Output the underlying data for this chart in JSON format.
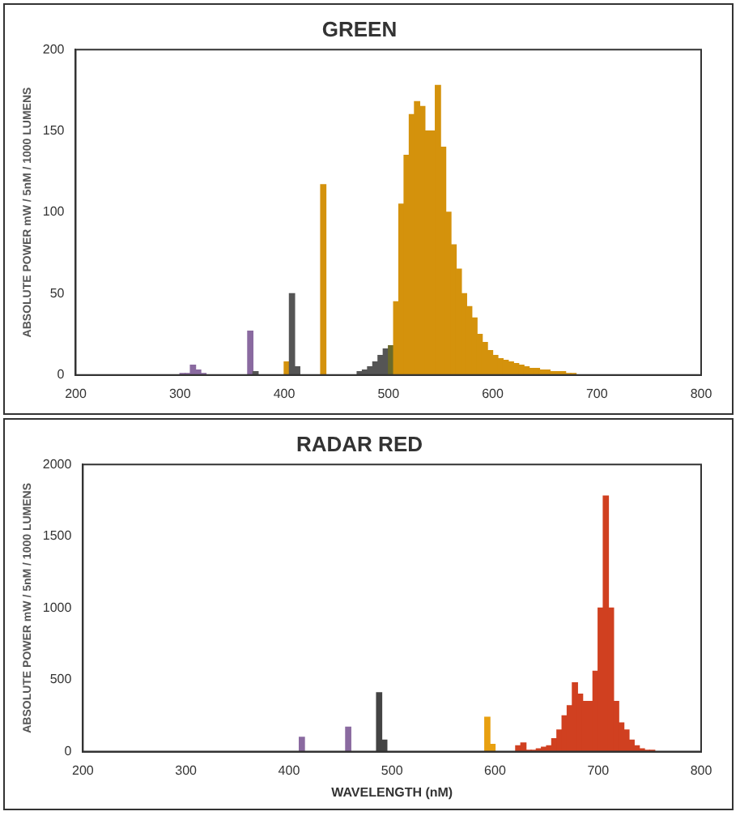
{
  "chart_data": [
    {
      "type": "histogram",
      "title": "GREEN",
      "ylabel": "ABSOLUTE POWER mW / 5nM / 1000 LUMENS",
      "bins": [
        300,
        305,
        310,
        315,
        320,
        325,
        330,
        335,
        340,
        345,
        350,
        355,
        360,
        365,
        370,
        375,
        380,
        385,
        390,
        395,
        400,
        405,
        410,
        415,
        420,
        425,
        430,
        435,
        440,
        445,
        450,
        455,
        460,
        465,
        470,
        475,
        480,
        485,
        490,
        495,
        500,
        505,
        510,
        515,
        520,
        525,
        530,
        535,
        540,
        545,
        550,
        555,
        560,
        565,
        570,
        575,
        580,
        585,
        590,
        595,
        600,
        605,
        610,
        615,
        620,
        625,
        630,
        635,
        640,
        645,
        650,
        655,
        660,
        665,
        670,
        675,
        680
      ],
      "values": [
        1,
        1,
        6,
        3,
        1,
        0,
        0,
        0,
        0,
        0,
        0,
        0,
        0,
        27,
        2,
        0,
        0,
        0,
        0,
        0,
        8,
        50,
        5,
        0,
        0,
        0,
        0,
        117,
        null,
        null,
        null,
        null,
        null,
        null,
        2,
        3,
        5,
        8,
        12,
        16,
        18,
        45,
        105,
        135,
        160,
        168,
        165,
        150,
        150,
        178,
        140,
        100,
        80,
        65,
        50,
        42,
        35,
        25,
        20,
        15,
        12,
        10,
        9,
        8,
        7,
        6,
        5,
        4,
        4,
        3,
        3,
        2,
        2,
        2,
        1,
        1
      ],
      "colors": [
        "#8a6aa0",
        "#8a6aa0",
        "#8a6aa0",
        "#8a6aa0",
        "#8a6aa0",
        "#8a6aa0",
        "#8a6aa0",
        "#555555",
        "#555555",
        "#555555",
        "#555555",
        "#555555",
        "#555555",
        "#8a6aa0",
        "#555555",
        "#555555",
        "#555555",
        "#555555",
        "#555555",
        "#555555",
        "#d4920c",
        "#555555",
        "#555555",
        "#555555",
        "#555555",
        "#555555",
        "#555555",
        "#d4920c",
        "#555555",
        "#555555",
        "#555555",
        "#555555",
        "#555555",
        "#555555",
        "#555555",
        "#555555",
        "#555555",
        "#555555",
        "#555555",
        "#555555",
        "#6b6a2a",
        "#d4920c",
        "#d4920c",
        "#d4920c",
        "#d4920c",
        "#d4920c",
        "#d4920c",
        "#d4920c",
        "#d4920c",
        "#d4920c",
        "#d4920c",
        "#d4920c",
        "#d4920c",
        "#d4920c",
        "#d4920c",
        "#d4920c",
        "#d4920c",
        "#d4920c",
        "#d4920c",
        "#d4920c",
        "#d4920c",
        "#d4920c",
        "#d4920c",
        "#d4920c",
        "#d4920c",
        "#d4920c",
        "#d4920c",
        "#d4920c",
        "#d4920c",
        "#d4920c",
        "#d4920c",
        "#d4920c",
        "#d4920c",
        "#d4920c",
        "#d4920c",
        "#d4920c"
      ],
      "xlim": [
        200,
        800
      ],
      "xticks": [
        200,
        300,
        400,
        500,
        600,
        700,
        800
      ],
      "ylim": [
        0,
        200
      ],
      "yticks": [
        0,
        50,
        100,
        150,
        200
      ],
      "grid": false,
      "legend": false
    },
    {
      "type": "histogram",
      "title": "RADAR RED",
      "xlabel": "WAVELENGTH (nM)",
      "ylabel": "ABSOLUTE POWER mW / 5nM / 1000 LUMENS",
      "bins": [
        400,
        405,
        410,
        415,
        420,
        425,
        430,
        435,
        440,
        445,
        450,
        455,
        460,
        465,
        470,
        475,
        480,
        485,
        490,
        495,
        500,
        505,
        510,
        515,
        520,
        525,
        530,
        535,
        540,
        545,
        550,
        555,
        560,
        565,
        570,
        575,
        580,
        585,
        590,
        595,
        600,
        605,
        610,
        615,
        620,
        625,
        630,
        635,
        640,
        645,
        650,
        655,
        660,
        665,
        670,
        675,
        680,
        685,
        690,
        695,
        700,
        705,
        710,
        715,
        720,
        725,
        730,
        735,
        740,
        745,
        750,
        755,
        760
      ],
      "values": [
        0,
        0,
        100,
        0,
        0,
        0,
        0,
        0,
        0,
        0,
        0,
        170,
        0,
        0,
        0,
        0,
        0,
        410,
        80,
        0,
        0,
        0,
        0,
        0,
        0,
        0,
        0,
        0,
        0,
        0,
        0,
        0,
        0,
        0,
        0,
        0,
        0,
        0,
        240,
        50,
        0,
        0,
        0,
        0,
        40,
        60,
        10,
        10,
        20,
        30,
        40,
        90,
        150,
        250,
        320,
        480,
        400,
        350,
        350,
        560,
        1000,
        1780,
        1000,
        350,
        200,
        150,
        80,
        40,
        20,
        10,
        10,
        0
      ],
      "colors": [
        "#555555",
        "#555555",
        "#8a6aa0",
        "#555555",
        "#555555",
        "#555555",
        "#555555",
        "#555555",
        "#555555",
        "#555555",
        "#555555",
        "#8a6aa0",
        "#555555",
        "#555555",
        "#555555",
        "#555555",
        "#555555",
        "#444444",
        "#444444",
        "#555555",
        "#555555",
        "#555555",
        "#555555",
        "#555555",
        "#555555",
        "#555555",
        "#555555",
        "#555555",
        "#555555",
        "#555555",
        "#555555",
        "#555555",
        "#555555",
        "#555555",
        "#555555",
        "#555555",
        "#555555",
        "#555555",
        "#e8a010",
        "#e8a010",
        "#d04020",
        "#d04020",
        "#d04020",
        "#d04020",
        "#d04020",
        "#d04020",
        "#d04020",
        "#d04020",
        "#d04020",
        "#d04020",
        "#d04020",
        "#d04020",
        "#d04020",
        "#d04020",
        "#d04020",
        "#d04020",
        "#d04020",
        "#d04020",
        "#d04020",
        "#d04020",
        "#d04020",
        "#d04020",
        "#d04020",
        "#d04020",
        "#d04020",
        "#d04020",
        "#d04020",
        "#d04020",
        "#d04020",
        "#d04020",
        "#d04020",
        "#d04020"
      ],
      "xlim": [
        200,
        800
      ],
      "xticks": [
        200,
        300,
        400,
        500,
        600,
        700,
        800
      ],
      "ylim": [
        0,
        2000
      ],
      "yticks": [
        0,
        500,
        1000,
        1500,
        2000
      ],
      "grid": false,
      "legend": false
    }
  ]
}
